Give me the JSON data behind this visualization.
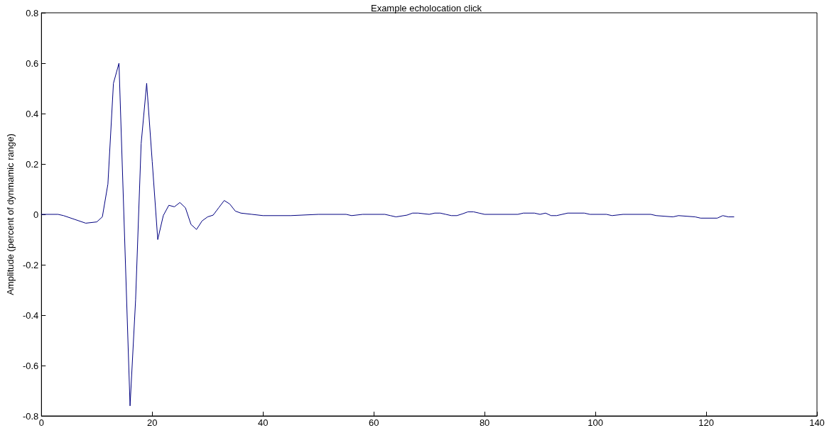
{
  "chart_data": {
    "type": "line",
    "title": "Example echolocation click",
    "ylabel": "Amplitude (percent of dynmamic range)",
    "x": [
      0,
      3,
      4,
      6,
      8,
      10,
      11,
      12,
      13,
      14,
      16,
      17,
      18,
      19,
      20,
      21,
      22,
      23,
      24,
      25,
      26,
      27,
      28,
      29,
      30,
      31,
      32,
      33,
      34,
      35,
      36,
      38,
      40,
      45,
      50,
      55,
      56,
      58,
      62,
      63,
      64,
      66,
      67,
      68,
      70,
      71,
      72,
      73,
      74,
      75,
      76,
      77,
      78,
      79,
      80,
      86,
      87,
      89,
      90,
      91,
      92,
      93,
      95,
      98,
      99,
      102,
      103,
      105,
      110,
      111,
      114,
      115,
      118,
      119,
      122,
      123,
      124,
      125
    ],
    "series": [
      {
        "color": "#000080",
        "values": [
          0,
          0,
          -0.005,
          -0.02,
          -0.035,
          -0.03,
          -0.01,
          0.12,
          0.52,
          0.6,
          -0.76,
          -0.34,
          0.28,
          0.52,
          0.21,
          -0.1,
          -0.005,
          0.036,
          0.03,
          0.047,
          0.026,
          -0.04,
          -0.06,
          -0.026,
          -0.01,
          -0.003,
          0.026,
          0.055,
          0.041,
          0.013,
          0.005,
          0,
          -0.005,
          -0.005,
          0,
          0,
          -0.005,
          0,
          0,
          -0.005,
          -0.01,
          -0.003,
          0.005,
          0.005,
          0,
          0.005,
          0.005,
          0,
          -0.005,
          -0.005,
          0.002,
          0.01,
          0.01,
          0.005,
          0,
          0,
          0.005,
          0.005,
          0,
          0.005,
          -0.005,
          -0.005,
          0.005,
          0.005,
          0,
          0,
          -0.005,
          0,
          0,
          -0.005,
          -0.01,
          -0.005,
          -0.01,
          -0.015,
          -0.015,
          -0.005,
          -0.01,
          -0.01
        ]
      }
    ],
    "xlim": [
      0,
      140
    ],
    "xticks": [
      0,
      20,
      40,
      60,
      80,
      100,
      120,
      140
    ],
    "ylim": [
      -0.8,
      0.8
    ],
    "yticks": [
      -0.8,
      -0.6,
      -0.4,
      -0.2,
      0,
      0.2,
      0.4,
      0.6,
      0.8
    ],
    "grid": false,
    "marker": "none",
    "line_style": "solid"
  }
}
